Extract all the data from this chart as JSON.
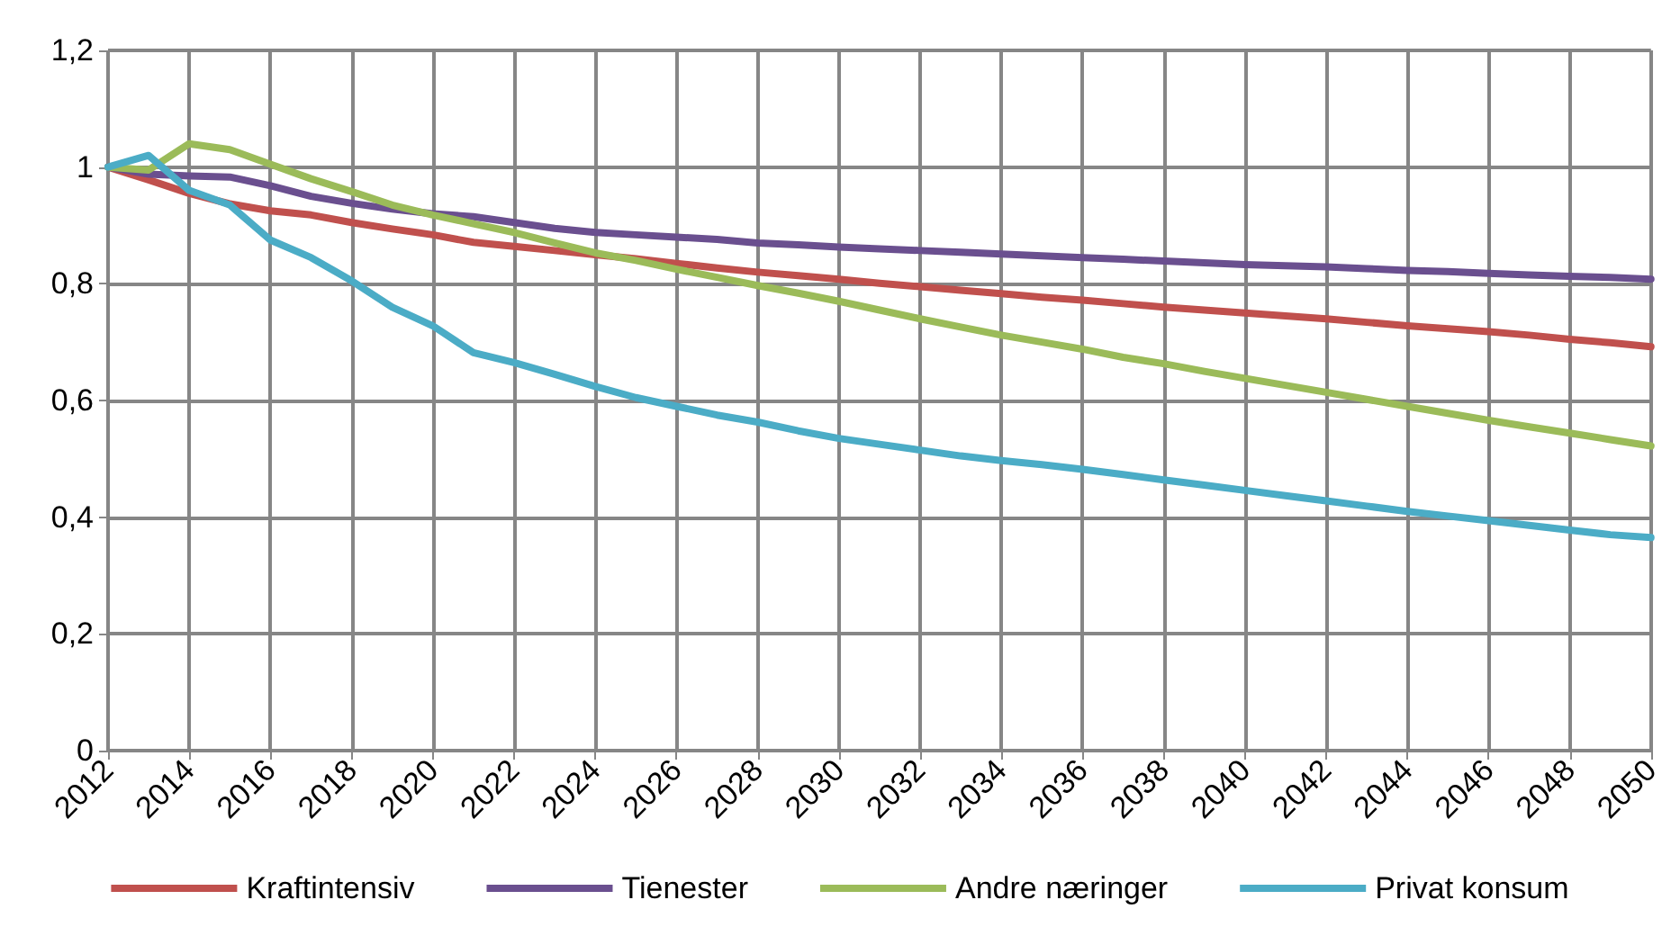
{
  "chart_data": {
    "type": "line",
    "x": [
      2012,
      2013,
      2014,
      2015,
      2016,
      2017,
      2018,
      2019,
      2020,
      2021,
      2022,
      2023,
      2024,
      2025,
      2026,
      2027,
      2028,
      2029,
      2030,
      2031,
      2032,
      2033,
      2034,
      2035,
      2036,
      2037,
      2038,
      2039,
      2040,
      2041,
      2042,
      2043,
      2044,
      2045,
      2046,
      2047,
      2048,
      2049,
      2050
    ],
    "series": [
      {
        "name": "Kraftintensiv",
        "color": "#c0504d",
        "values": [
          1.0,
          0.978,
          0.955,
          0.937,
          0.925,
          0.918,
          0.905,
          0.894,
          0.884,
          0.871,
          0.864,
          0.857,
          0.85,
          0.843,
          0.835,
          0.827,
          0.82,
          0.814,
          0.808,
          0.801,
          0.795,
          0.789,
          0.783,
          0.777,
          0.772,
          0.766,
          0.76,
          0.755,
          0.75,
          0.745,
          0.74,
          0.734,
          0.728,
          0.723,
          0.718,
          0.712,
          0.705,
          0.699,
          0.692
        ]
      },
      {
        "name": "Tienester",
        "color": "#6a4f8f",
        "values": [
          1.0,
          0.988,
          0.985,
          0.983,
          0.968,
          0.95,
          0.938,
          0.928,
          0.92,
          0.915,
          0.905,
          0.895,
          0.888,
          0.884,
          0.88,
          0.876,
          0.87,
          0.867,
          0.863,
          0.86,
          0.857,
          0.854,
          0.851,
          0.848,
          0.845,
          0.842,
          0.839,
          0.836,
          0.833,
          0.831,
          0.829,
          0.826,
          0.823,
          0.821,
          0.818,
          0.815,
          0.813,
          0.811,
          0.808
        ]
      },
      {
        "name": "Andre næringer",
        "color": "#9bbb59",
        "values": [
          1.0,
          0.995,
          1.04,
          1.03,
          1.005,
          0.98,
          0.958,
          0.935,
          0.918,
          0.903,
          0.888,
          0.87,
          0.853,
          0.84,
          0.825,
          0.811,
          0.797,
          0.784,
          0.77,
          0.755,
          0.74,
          0.726,
          0.712,
          0.7,
          0.688,
          0.674,
          0.663,
          0.65,
          0.638,
          0.626,
          0.614,
          0.602,
          0.59,
          0.578,
          0.566,
          0.555,
          0.544,
          0.533,
          0.522
        ]
      },
      {
        "name": "Privat konsum",
        "color": "#4bacc6",
        "values": [
          1.0,
          1.02,
          0.96,
          0.935,
          0.875,
          0.845,
          0.805,
          0.76,
          0.728,
          0.682,
          0.665,
          0.645,
          0.624,
          0.605,
          0.59,
          0.575,
          0.563,
          0.548,
          0.535,
          0.525,
          0.515,
          0.505,
          0.497,
          0.49,
          0.482,
          0.473,
          0.464,
          0.455,
          0.446,
          0.437,
          0.428,
          0.419,
          0.41,
          0.402,
          0.394,
          0.386,
          0.378,
          0.37,
          0.365
        ]
      }
    ],
    "xlim": [
      2012,
      2050
    ],
    "xticks": [
      2012,
      2014,
      2016,
      2018,
      2020,
      2022,
      2024,
      2026,
      2028,
      2030,
      2032,
      2034,
      2036,
      2038,
      2040,
      2042,
      2044,
      2046,
      2048,
      2050
    ],
    "ylim": [
      0,
      1.2
    ],
    "yticks": [
      0,
      {
        "value": 0.2,
        "label": "0,2"
      },
      {
        "value": 0.4,
        "label": "0,4"
      },
      {
        "value": 0.6,
        "label": "0,6"
      },
      {
        "value": 0.8,
        "label": "0,8"
      },
      1,
      {
        "value": 1.2,
        "label": "1,2"
      }
    ],
    "grid": true,
    "legend": "bottom",
    "marker": "none",
    "line_style": "solid"
  }
}
